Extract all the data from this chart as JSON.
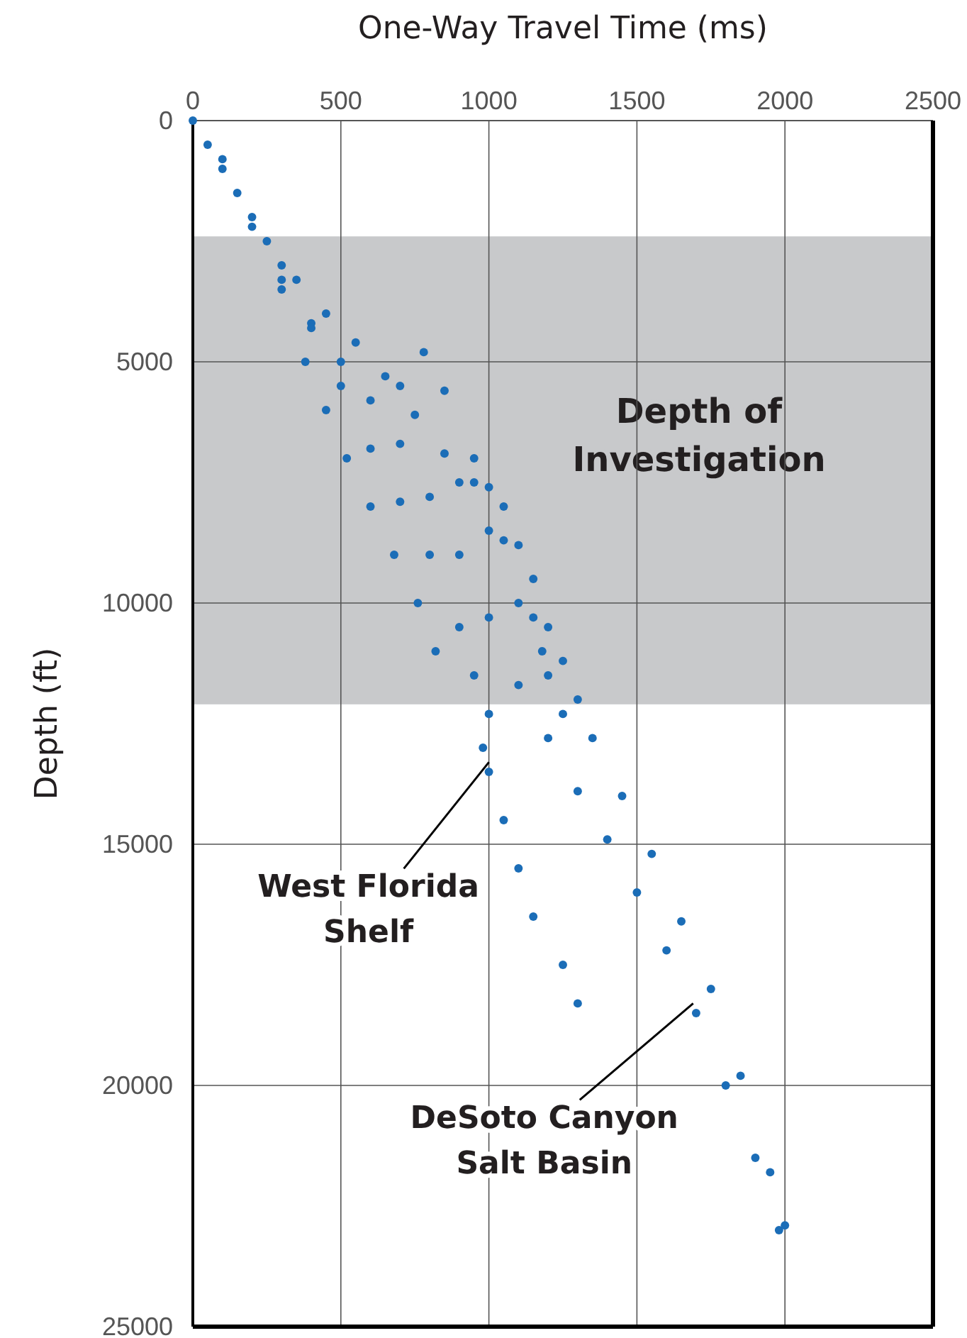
{
  "chart_data": {
    "type": "scatter",
    "xlabel": "One-Way Travel Time (ms)",
    "ylabel": "Depth (ft)",
    "xlim": [
      0,
      2500
    ],
    "xticks": [
      0,
      500,
      1000,
      1500,
      2000,
      2500
    ],
    "ylim": [
      25000,
      0
    ],
    "yticks": [
      0,
      5000,
      10000,
      15000,
      20000,
      25000
    ],
    "grid": true,
    "marker": "circle",
    "bands": [
      {
        "axis": "y",
        "from": 2400,
        "to": 12100,
        "label": "Depth of Investigation",
        "color": "#c8c9cb"
      }
    ],
    "annotations": [
      {
        "text": "West Florida Shelf",
        "x": 1000,
        "y": 13300
      },
      {
        "text": "DeSoto Canyon Salt Basin",
        "x": 1690,
        "y": 18300
      }
    ],
    "series": [
      {
        "color": "#1b6db7",
        "x": [
          0,
          50,
          150,
          250,
          350,
          450,
          550,
          650,
          750,
          850,
          950,
          1000,
          1050,
          1100,
          1150,
          1200,
          1250,
          1300,
          100,
          200,
          300,
          400,
          500,
          600,
          700,
          800,
          900,
          1000,
          1100,
          1200,
          1300,
          1400,
          1500,
          1600,
          1700,
          1800,
          1900,
          1980,
          1350,
          1450,
          1550,
          1650,
          1750,
          1850,
          1950,
          2000,
          780,
          850,
          950,
          1050,
          1150,
          1180,
          700,
          900,
          1000,
          1100,
          1200,
          1250
        ],
        "values": [
          0,
          500,
          1500,
          2500,
          3300,
          4000,
          4600,
          5300,
          6100,
          6900,
          7500,
          7600,
          8000,
          8800,
          9500,
          10500,
          11200,
          12000,
          1000,
          2200,
          3300,
          4200,
          5000,
          5800,
          6700,
          7800,
          9000,
          10300,
          11700,
          12800,
          13900,
          14900,
          16000,
          17200,
          18500,
          20000,
          21500,
          23000,
          12800,
          14000,
          15200,
          16600,
          18000,
          19800,
          21800,
          22900,
          4800,
          5600,
          7000,
          8700,
          10300,
          11000,
          5500,
          7500,
          8500,
          10000,
          11500,
          12300
        ]
      },
      {
        "color": "#1b6db7",
        "x": [
          100,
          200,
          300,
          380,
          450,
          520,
          600,
          680,
          760,
          820,
          300,
          400,
          500,
          600,
          700,
          800,
          900,
          950,
          1000,
          980,
          1000,
          1050,
          1100,
          1150,
          1250,
          1300
        ],
        "values": [
          800,
          2000,
          3500,
          5000,
          6000,
          7000,
          8000,
          9000,
          10000,
          11000,
          3000,
          4300,
          5500,
          6800,
          7900,
          9000,
          10500,
          11500,
          12300,
          13000,
          13500,
          14500,
          15500,
          16500,
          17500,
          18300
        ]
      }
    ]
  }
}
